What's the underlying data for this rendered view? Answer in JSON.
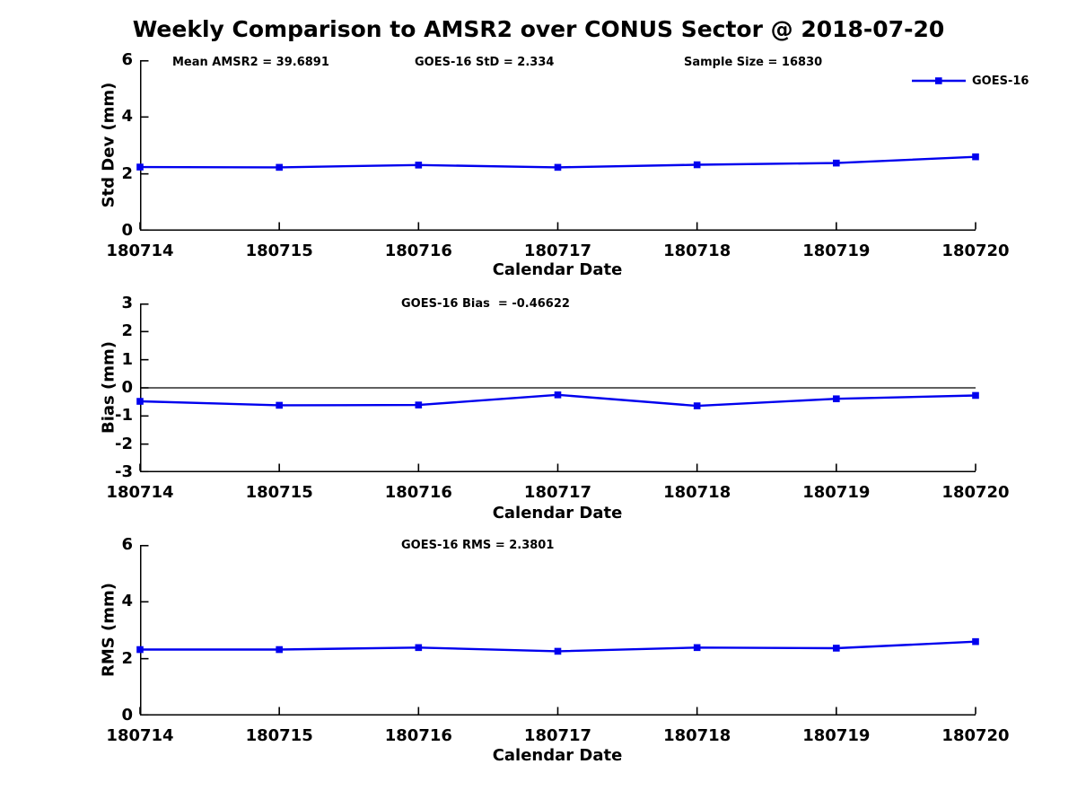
{
  "title": "Weekly Comparison to AMSR2 over CONUS Sector @ 2018-07-20",
  "legend": {
    "label": "GOES-16",
    "position": "top-right"
  },
  "colors": {
    "line_color": "#0000EE",
    "axis_color": "#000000",
    "text_color": "#000000",
    "background": "#FFFFFF"
  },
  "chart_data": [
    {
      "type": "line",
      "categories": [
        "180714",
        "180715",
        "180716",
        "180717",
        "180718",
        "180719",
        "180720"
      ],
      "series": [
        {
          "name": "GOES-16",
          "values": [
            2.24,
            2.23,
            2.31,
            2.23,
            2.32,
            2.38,
            2.6
          ]
        }
      ],
      "marker": "square",
      "xlabel": "Calendar Date",
      "ylabel": "Std Dev (mm)",
      "ylim": [
        0,
        6
      ],
      "yticks": [
        0,
        2,
        4,
        6
      ],
      "grid": false,
      "annotations": [
        {
          "text": "Mean AMSR2 = 39.6891"
        },
        {
          "text": "GOES-16 StD = 2.334"
        },
        {
          "text": "Sample Size = 16830"
        }
      ]
    },
    {
      "type": "line",
      "categories": [
        "180714",
        "180715",
        "180716",
        "180717",
        "180718",
        "180719",
        "180720"
      ],
      "series": [
        {
          "name": "GOES-16",
          "values": [
            -0.48,
            -0.62,
            -0.61,
            -0.25,
            -0.64,
            -0.39,
            -0.27
          ]
        }
      ],
      "marker": "square",
      "xlabel": "Calendar Date",
      "ylabel": "Bias (mm)",
      "ylim": [
        -3,
        3
      ],
      "yticks": [
        3,
        2,
        1,
        0,
        -1,
        -2,
        -3
      ],
      "zero_line": true,
      "grid": false,
      "annotations": [
        {
          "text": "GOES-16 Bias  = -0.46622"
        }
      ]
    },
    {
      "type": "line",
      "categories": [
        "180714",
        "180715",
        "180716",
        "180717",
        "180718",
        "180719",
        "180720"
      ],
      "series": [
        {
          "name": "GOES-16",
          "values": [
            2.32,
            2.32,
            2.39,
            2.26,
            2.39,
            2.37,
            2.6
          ]
        }
      ],
      "marker": "square",
      "xlabel": "Calendar Date",
      "ylabel": "RMS (mm)",
      "ylim": [
        0,
        6
      ],
      "yticks": [
        0,
        2,
        4,
        6
      ],
      "grid": false,
      "annotations": [
        {
          "text": "GOES-16 RMS = 2.3801"
        }
      ]
    }
  ]
}
